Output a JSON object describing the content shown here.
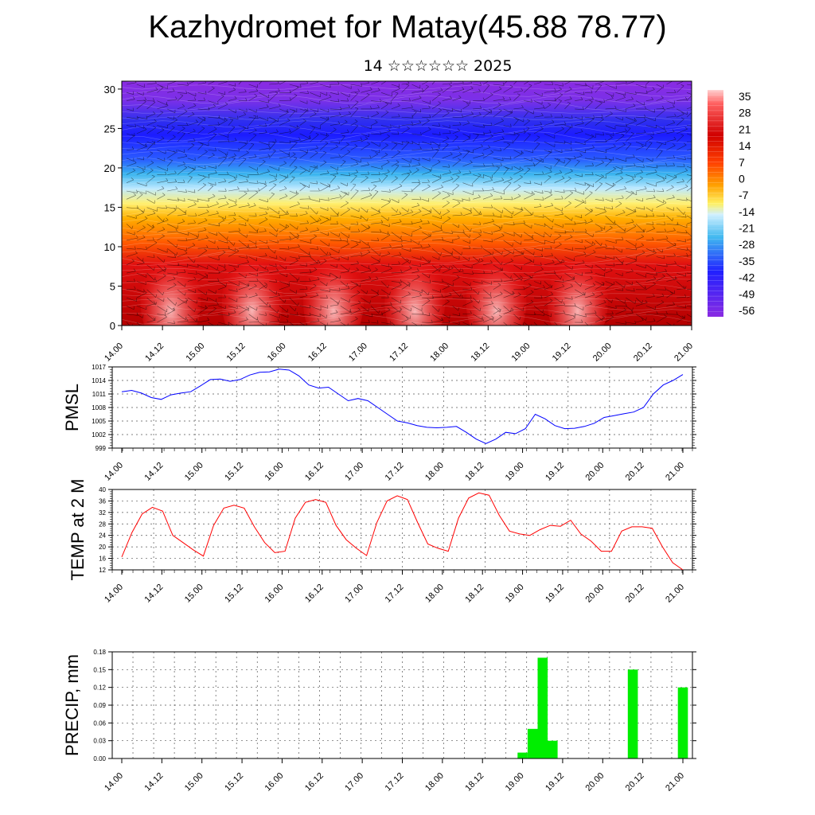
{
  "title": "Kazhydromet for Matay(45.88 78.77)",
  "subtitle": "14 ☆☆☆☆☆☆ 2025",
  "time_labels": [
    "14.00",
    "14.12",
    "15.00",
    "15.12",
    "16.00",
    "16.12",
    "17.00",
    "17.12",
    "18.00",
    "18.12",
    "19.00",
    "19.12",
    "20.00",
    "20.12",
    "21.00"
  ],
  "chart_data": [
    {
      "type": "heatmap",
      "title": "",
      "ylabel": "",
      "ylim": [
        0,
        31
      ],
      "yticks": [
        0,
        5,
        10,
        15,
        20,
        25,
        30
      ],
      "colorbar_labels": [
        "35",
        "28",
        "21",
        "14",
        "7",
        "0",
        "-7",
        "-14",
        "-21",
        "-28",
        "-35",
        "-42",
        "-49",
        "-56"
      ],
      "colors": {
        "hot": "#c80000",
        "warm": "#ff8c00",
        "mild": "#ffee66",
        "cool": "#5cc8f0",
        "cold": "#2020ff",
        "coldest": "#8a2be2"
      },
      "description_layers": [
        {
          "height_min": 0,
          "height_max": 8,
          "temp": 30
        },
        {
          "height_min": 10,
          "height_max": 12,
          "temp": 14
        },
        {
          "height_min": 15,
          "height_max": 16,
          "temp": -7
        },
        {
          "height_min": 18,
          "height_max": 19,
          "temp": -21
        },
        {
          "height_min": 20,
          "height_max": 22,
          "temp": -42
        },
        {
          "height_min": 23,
          "height_max": 26,
          "temp": -56
        },
        {
          "height_min": 27,
          "height_max": 31,
          "temp": -49
        }
      ]
    },
    {
      "type": "line",
      "ylabel": "PMSL",
      "ylim": [
        999,
        1017
      ],
      "yticks": [
        "999",
        "1002",
        "1005",
        "1008",
        "1011",
        "1014",
        "1017"
      ],
      "series": [
        {
          "color": "#0000ff",
          "values": [
            1011.5,
            1011.8,
            1011.2,
            1010.2,
            1009.8,
            1010.8,
            1011.2,
            1011.5,
            1012.8,
            1014.2,
            1014.3,
            1013.8,
            1014.2,
            1015.2,
            1015.8,
            1015.9,
            1016.5,
            1016.3,
            1015.0,
            1013.0,
            1012.3,
            1012.5,
            1011.0,
            1009.5,
            1010.0,
            1009.5,
            1008.0,
            1006.5,
            1005.0,
            1004.6,
            1004.0,
            1003.6,
            1003.5,
            1003.6,
            1003.8,
            1002.5,
            1001.0,
            1000.0,
            1001.0,
            1002.5,
            1002.2,
            1003.3,
            1006.5,
            1005.5,
            1004.0,
            1003.3,
            1003.4,
            1003.8,
            1004.5,
            1005.8,
            1006.2,
            1006.6,
            1007.0,
            1008.0,
            1011.0,
            1013.0,
            1014.0,
            1015.3
          ]
        }
      ]
    },
    {
      "type": "line",
      "ylabel": "TEMP at 2 M",
      "ylim": [
        12,
        40
      ],
      "yticks": [
        "12",
        "16",
        "20",
        "24",
        "28",
        "32",
        "36",
        "40"
      ],
      "series": [
        {
          "color": "#ff0000",
          "values": [
            16.5,
            25,
            31.5,
            33.8,
            32.5,
            24,
            21.5,
            19,
            16.8,
            27.5,
            33.5,
            34.5,
            33.5,
            27,
            21.5,
            18,
            18.5,
            30,
            35.5,
            36.5,
            35.5,
            27.5,
            22.5,
            19.5,
            17,
            28.5,
            36,
            37.8,
            36.5,
            28.5,
            21,
            19.5,
            18.5,
            30,
            37,
            38.8,
            38,
            31,
            25.5,
            24.5,
            24,
            26,
            27.5,
            27.2,
            29.3,
            24.5,
            22,
            18.5,
            18.5,
            25.5,
            27,
            27,
            26.5,
            20,
            14.5,
            12
          ]
        }
      ]
    },
    {
      "type": "bar",
      "ylabel": "PRECIP, mm",
      "ylim": [
        0,
        0.18
      ],
      "yticks": [
        "0.00",
        "0.03",
        "0.06",
        "0.09",
        "0.12",
        "0.15",
        "0.18"
      ],
      "bar_color": "#00ee00",
      "bars": [
        {
          "time": "19.00",
          "offset_hours": 0,
          "value": 0.01
        },
        {
          "time": "19.03",
          "offset_hours": 3,
          "value": 0.05
        },
        {
          "time": "19.06",
          "offset_hours": 6,
          "value": 0.17
        },
        {
          "time": "19.09",
          "offset_hours": 9,
          "value": 0.03
        },
        {
          "time": "20.09",
          "offset_hours": 33,
          "value": 0.15
        },
        {
          "time": "21.00",
          "offset_hours": 48,
          "value": 0.12
        }
      ]
    }
  ]
}
